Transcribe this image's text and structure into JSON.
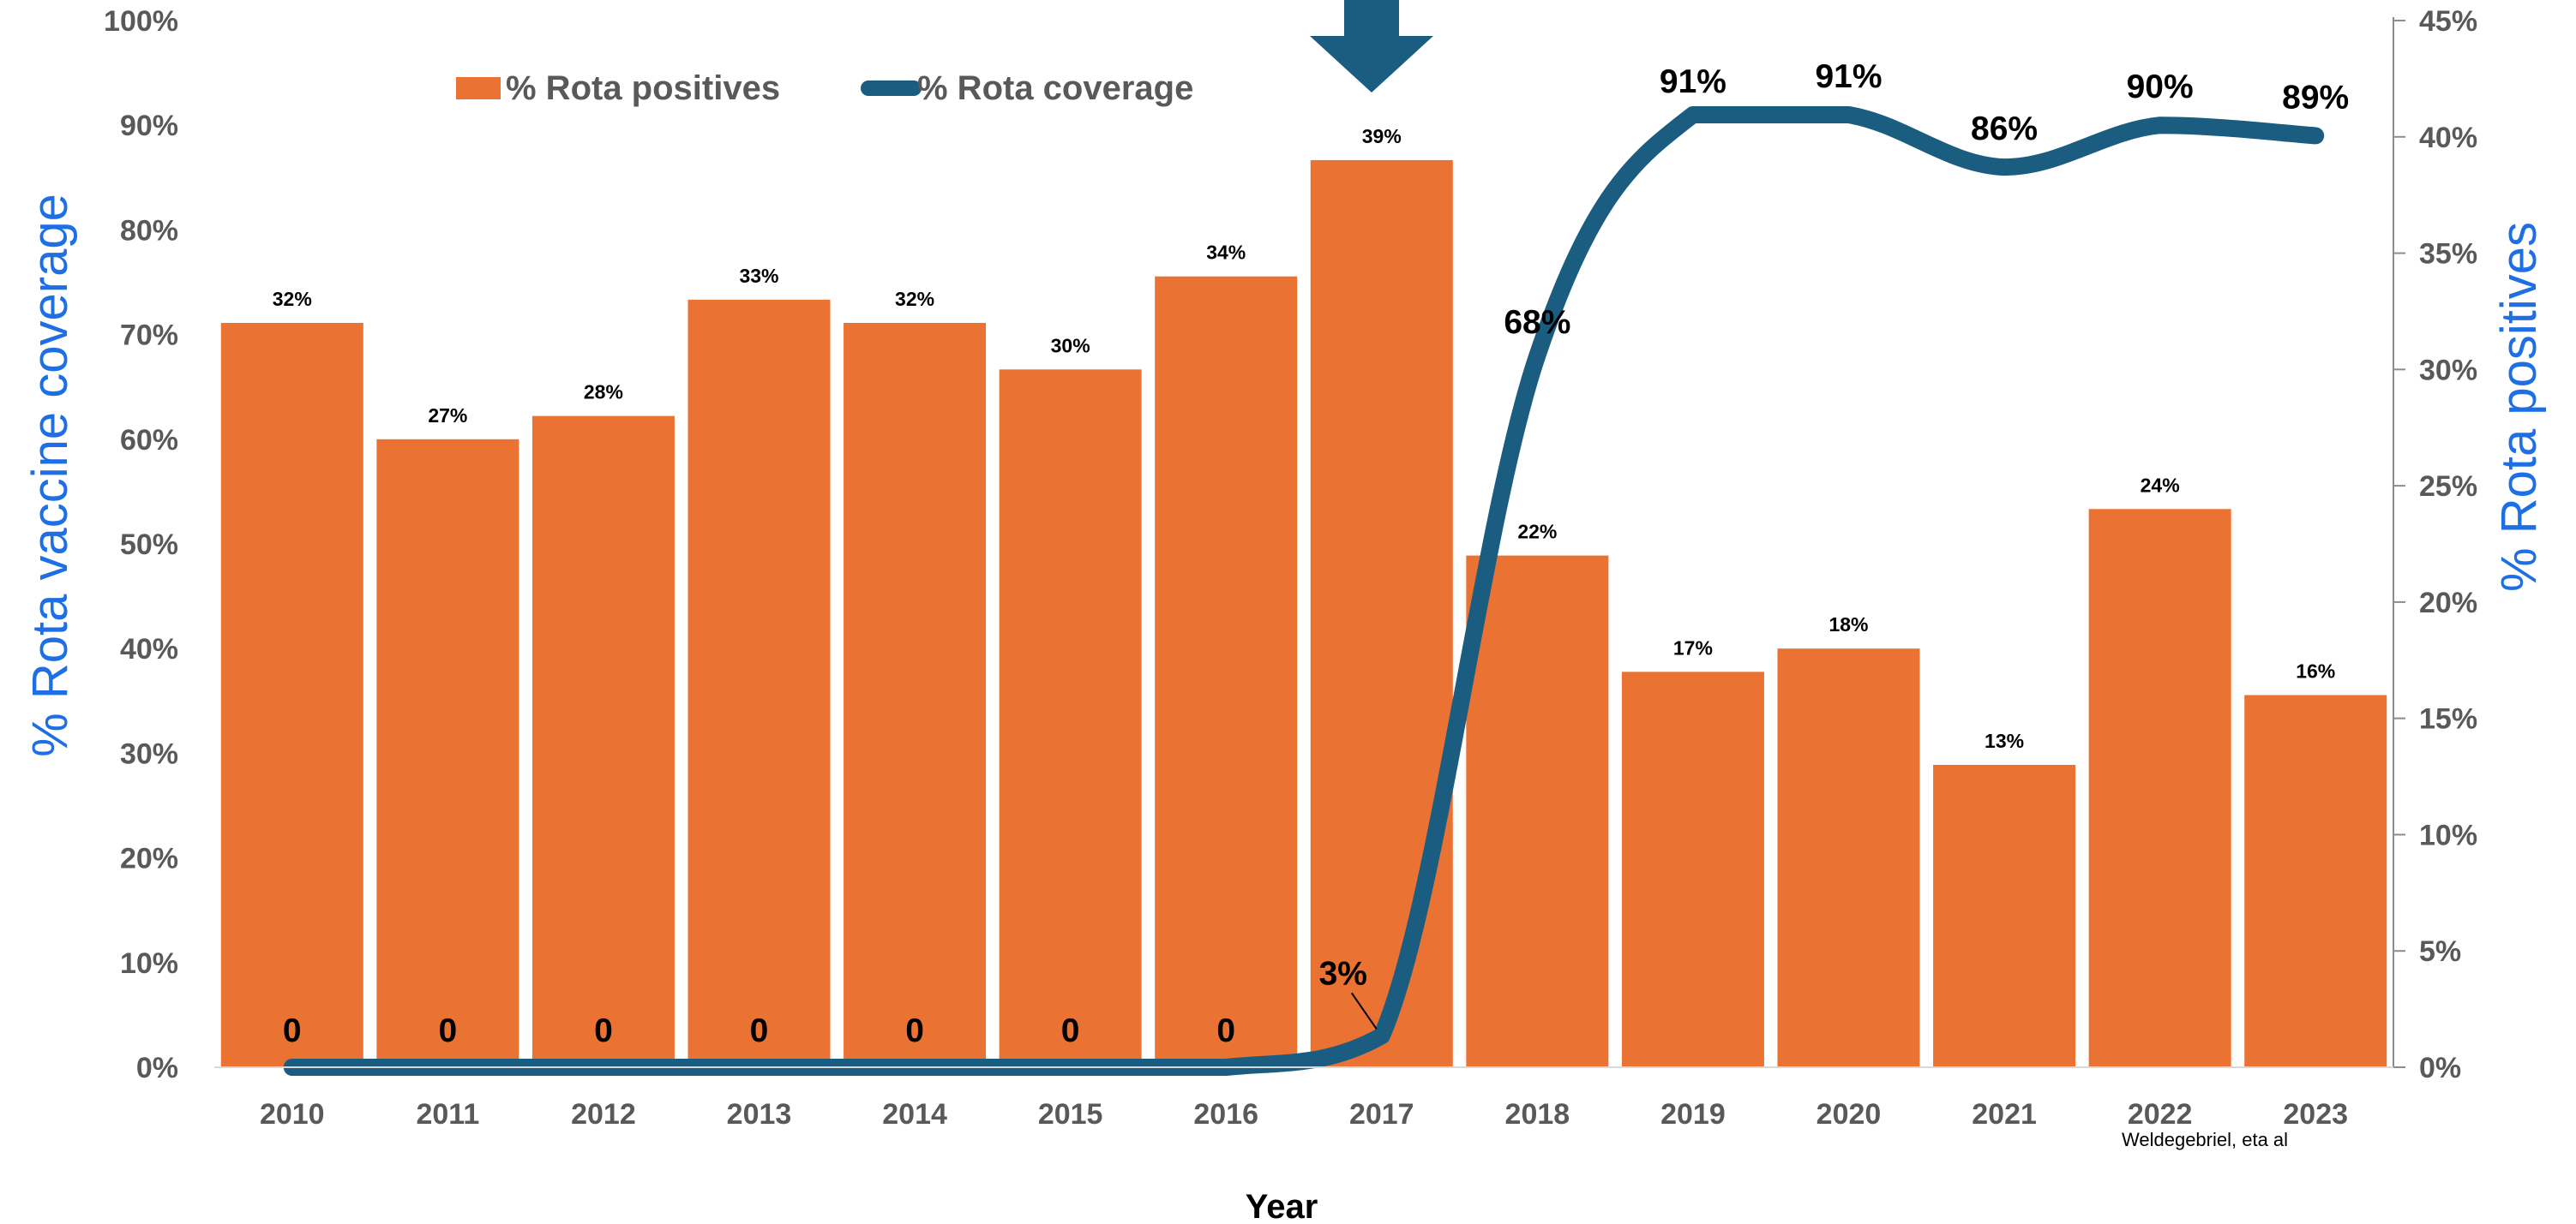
{
  "chart_data": {
    "type": "bar",
    "categories": [
      "2010",
      "2011",
      "2012",
      "2013",
      "2014",
      "2015",
      "2016",
      "2017",
      "2018",
      "2019",
      "2020",
      "2021",
      "2022",
      "2023"
    ],
    "series": [
      {
        "name": "% Rota positives",
        "type": "bar",
        "axis": "right",
        "color": "#EA7233",
        "values": [
          32,
          27,
          28,
          33,
          32,
          30,
          34,
          39,
          22,
          17,
          18,
          13,
          24,
          16
        ],
        "labels": [
          "32%",
          "27%",
          "28%",
          "33%",
          "32%",
          "30%",
          "34%",
          "39%",
          "22%",
          "17%",
          "18%",
          "13%",
          "24%",
          "16%"
        ]
      },
      {
        "name": "% Rota coverage",
        "type": "line",
        "axis": "left",
        "color": "#1B5D80",
        "values": [
          0,
          0,
          0,
          0,
          0,
          0,
          0,
          3,
          68,
          91,
          91,
          86,
          90,
          89
        ],
        "labels": [
          "0",
          "0",
          "0",
          "0",
          "0",
          "0",
          "0",
          "3%",
          "68%",
          "91%",
          "91%",
          "86%",
          "90%",
          "89%"
        ]
      }
    ],
    "xlabel": "Year",
    "ylabel": "% Rota vaccine coverage",
    "y2label": "% Rota positives",
    "ylim": [
      0,
      100
    ],
    "y2lim": [
      0,
      45
    ],
    "yticks": [
      "0%",
      "10%",
      "20%",
      "30%",
      "40%",
      "50%",
      "60%",
      "70%",
      "80%",
      "90%",
      "100%"
    ],
    "y2ticks": [
      "0%",
      "5%",
      "10%",
      "15%",
      "20%",
      "25%",
      "30%",
      "35%",
      "40%",
      "45%"
    ],
    "legend_position": "top-left",
    "grid": false,
    "annotations": {
      "arrow_at_category": "2017",
      "arrow_color": "#1B5D80",
      "credit": "Weldegebriel, eta al"
    },
    "axis_title_color": "#1E6FE6"
  }
}
